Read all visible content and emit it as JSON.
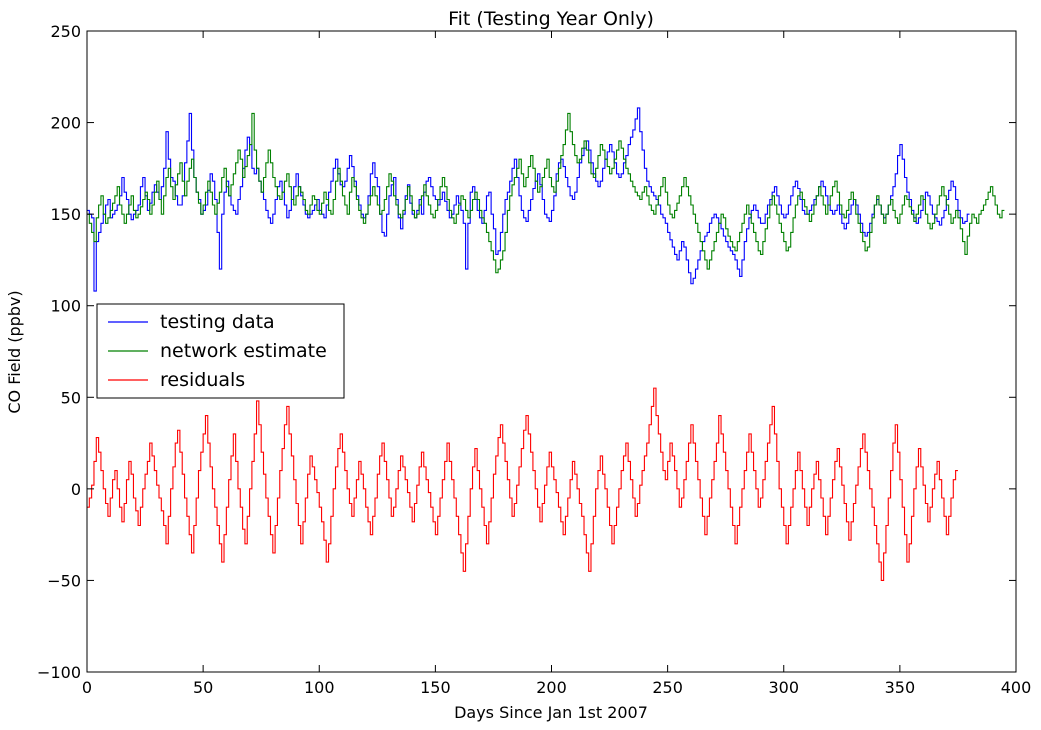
{
  "chart_data": {
    "type": "line",
    "title": "Fit (Testing Year Only)",
    "xlabel": "Days Since Jan 1st 2007",
    "ylabel": "CO Field (ppbv)",
    "xlim": [
      0,
      400
    ],
    "ylim": [
      -100,
      250
    ],
    "xticks": [
      0,
      50,
      100,
      150,
      200,
      250,
      300,
      350,
      400
    ],
    "yticks": [
      -100,
      -50,
      0,
      50,
      100,
      150,
      200,
      250
    ],
    "x_range": [
      0,
      363
    ],
    "grid": false,
    "legend_position": "center-left",
    "series": [
      {
        "name": "testing data",
        "color": "#0000ff",
        "step": 1,
        "values": [
          152,
          150,
          148,
          108,
          135,
          140,
          145,
          150,
          155,
          158,
          148,
          150,
          152,
          155,
          160,
          170,
          162,
          158,
          150,
          147,
          150,
          152,
          155,
          165,
          170,
          160,
          152,
          156,
          162,
          166,
          162,
          158,
          165,
          175,
          195,
          180,
          170,
          168,
          160,
          155,
          155,
          160,
          178,
          190,
          205,
          185,
          170,
          162,
          158,
          150,
          152,
          155,
          163,
          172,
          168,
          158,
          140,
          120,
          150,
          162,
          168,
          160,
          155,
          152,
          150,
          158,
          165,
          175,
          185,
          192,
          188,
          175,
          172,
          175,
          168,
          162,
          158,
          152,
          148,
          145,
          150,
          158,
          165,
          168,
          162,
          155,
          148,
          152,
          158,
          165,
          172,
          165,
          160,
          155,
          150,
          148,
          150,
          152,
          155,
          158,
          152,
          150,
          148,
          155,
          162,
          168,
          175,
          180,
          172,
          166,
          165,
          168,
          175,
          182,
          176,
          168,
          160,
          155,
          150,
          148,
          150,
          160,
          172,
          178,
          170,
          165,
          150,
          140,
          138,
          150,
          160,
          166,
          170,
          158,
          148,
          142,
          150,
          160,
          166,
          156,
          150,
          148,
          152,
          158,
          150,
          162,
          168,
          170,
          165,
          160,
          158,
          155,
          158,
          162,
          157,
          152,
          148,
          150,
          155,
          160,
          156,
          152,
          145,
          120,
          145,
          162,
          165,
          158,
          152,
          148,
          145,
          152,
          160,
          162,
          150,
          142,
          128,
          130,
          140,
          150,
          158,
          162,
          168,
          175,
          180,
          170,
          160,
          152,
          148,
          146,
          152,
          158,
          164,
          168,
          172,
          166,
          158,
          150,
          148,
          146,
          152,
          160,
          172,
          178,
          180,
          176,
          170,
          165,
          160,
          158,
          162,
          170,
          178,
          182,
          186,
          190,
          185,
          178,
          172,
          168,
          165,
          168,
          175,
          180,
          184,
          188,
          184,
          178,
          172,
          170,
          172,
          178,
          182,
          188,
          192,
          196,
          202,
          208,
          195,
          185,
          175,
          168,
          165,
          162,
          160,
          158,
          155,
          150,
          148,
          145,
          140,
          136,
          132,
          128,
          125,
          130,
          135,
          132,
          125,
          118,
          112,
          115,
          120,
          125,
          130,
          135,
          138,
          140,
          145,
          148,
          150,
          148,
          145,
          142,
          138,
          135,
          132,
          130,
          128,
          125,
          120,
          116,
          125,
          135,
          142,
          148,
          152,
          155,
          152,
          148,
          145,
          145,
          150,
          155,
          158,
          162,
          165,
          160,
          155,
          150,
          148,
          150,
          155,
          160,
          165,
          168,
          164,
          158,
          152,
          150,
          150,
          152,
          155,
          158,
          160,
          165,
          168,
          165,
          160,
          155,
          152,
          150,
          152,
          155,
          150,
          145,
          142,
          145,
          150,
          155,
          158,
          155,
          150,
          145,
          140,
          138,
          140,
          145,
          150,
          155,
          158,
          155,
          150,
          148,
          150,
          155,
          160,
          165,
          172,
          182,
          188,
          180,
          170,
          162,
          158,
          152,
          148,
          145,
          148,
          152,
          158,
          162,
          160,
          155,
          150,
          148,
          146,
          144,
          148,
          152,
          158,
          163,
          168,
          165,
          158,
          152,
          148,
          145,
          146,
          150
        ],
        "note": ""
      },
      {
        "name": "network estimate",
        "color": "#008000",
        "step": 1,
        "values": [
          150,
          145,
          140,
          135,
          148,
          155,
          160,
          150,
          145,
          148,
          152,
          156,
          160,
          165,
          155,
          150,
          145,
          150,
          155,
          160,
          152,
          148,
          150,
          154,
          158,
          162,
          158,
          150,
          155,
          162,
          168,
          158,
          150,
          160,
          170,
          175,
          165,
          158,
          166,
          172,
          178,
          168,
          160,
          168,
          175,
          180,
          170,
          162,
          156,
          150,
          155,
          162,
          168,
          162,
          155,
          150,
          156,
          162,
          170,
          175,
          165,
          160,
          166,
          172,
          178,
          185,
          180,
          170,
          176,
          182,
          188,
          205,
          185,
          175,
          168,
          162,
          170,
          178,
          185,
          178,
          170,
          165,
          160,
          158,
          162,
          168,
          172,
          165,
          158,
          155,
          160,
          165,
          162,
          158,
          152,
          150,
          155,
          160,
          158,
          152,
          150,
          156,
          162,
          158,
          152,
          150,
          158,
          168,
          175,
          168,
          160,
          155,
          150,
          162,
          170,
          165,
          158,
          152,
          148,
          145,
          150,
          155,
          160,
          165,
          160,
          155,
          150,
          152,
          158,
          165,
          172,
          168,
          160,
          155,
          150,
          148,
          152,
          158,
          165,
          160,
          152,
          148,
          150,
          155,
          160,
          166,
          160,
          155,
          150,
          148,
          152,
          158,
          165,
          170,
          165,
          158,
          152,
          148,
          145,
          150,
          155,
          160,
          158,
          152,
          148,
          152,
          158,
          162,
          158,
          152,
          148,
          145,
          140,
          135,
          130,
          125,
          118,
          120,
          125,
          130,
          140,
          152,
          160,
          166,
          170,
          175,
          180,
          172,
          165,
          170,
          176,
          182,
          175,
          168,
          162,
          165,
          170,
          175,
          180,
          170,
          165,
          162,
          168,
          175,
          182,
          188,
          196,
          205,
          195,
          188,
          182,
          178,
          180,
          186,
          190,
          185,
          178,
          172,
          170,
          175,
          182,
          188,
          185,
          180,
          176,
          172,
          175,
          180,
          185,
          190,
          186,
          180,
          175,
          172,
          168,
          165,
          162,
          160,
          158,
          162,
          165,
          160,
          155,
          152,
          150,
          155,
          160,
          165,
          170,
          162,
          155,
          150,
          148,
          152,
          156,
          160,
          165,
          170,
          165,
          160,
          155,
          150,
          145,
          140,
          135,
          130,
          125,
          120,
          125,
          130,
          135,
          140,
          145,
          150,
          148,
          142,
          138,
          135,
          132,
          130,
          135,
          140,
          145,
          150,
          155,
          150,
          145,
          140,
          135,
          130,
          128,
          135,
          142,
          148,
          155,
          160,
          155,
          150,
          145,
          140,
          135,
          130,
          132,
          140,
          148,
          155,
          160,
          162,
          158,
          154,
          150,
          146,
          150,
          155,
          160,
          165,
          160,
          155,
          150,
          155,
          160,
          165,
          168,
          162,
          155,
          150,
          148,
          152,
          158,
          162,
          158,
          150,
          145,
          140,
          135,
          130,
          132,
          140,
          148,
          155,
          160,
          155,
          150,
          145,
          150,
          155,
          158,
          152,
          148,
          145,
          150,
          155,
          160,
          158,
          154,
          150,
          146,
          150,
          155,
          160,
          158,
          150,
          145,
          142,
          145,
          150,
          155,
          160,
          165,
          160,
          155,
          150,
          145,
          148,
          152,
          148,
          142,
          135,
          128,
          138,
          145,
          150,
          148,
          145,
          150,
          152,
          155,
          158,
          162,
          165,
          160,
          155,
          150,
          148,
          152
        ],
        "note": ""
      },
      {
        "name": "residuals",
        "color": "#ff0000",
        "step": 1,
        "values": [
          -10,
          -5,
          2,
          15,
          28,
          20,
          10,
          0,
          -8,
          -15,
          -5,
          5,
          10,
          0,
          -10,
          -18,
          -8,
          5,
          15,
          8,
          -5,
          -12,
          -20,
          -10,
          0,
          8,
          15,
          25,
          18,
          10,
          2,
          -5,
          -12,
          -20,
          -30,
          -15,
          0,
          12,
          25,
          32,
          20,
          8,
          -5,
          -15,
          -25,
          -35,
          -20,
          -5,
          10,
          20,
          30,
          40,
          25,
          12,
          0,
          -10,
          -20,
          -30,
          -40,
          -25,
          -10,
          5,
          18,
          30,
          15,
          0,
          -10,
          -22,
          -30,
          -15,
          0,
          15,
          30,
          48,
          35,
          20,
          8,
          -5,
          -15,
          -25,
          -35,
          -20,
          -5,
          10,
          22,
          35,
          45,
          30,
          18,
          5,
          -8,
          -20,
          -30,
          -18,
          -5,
          8,
          18,
          12,
          5,
          -2,
          -10,
          -18,
          -28,
          -40,
          -30,
          -15,
          0,
          12,
          22,
          30,
          20,
          10,
          0,
          -8,
          -15,
          -5,
          5,
          15,
          8,
          0,
          -10,
          -18,
          -25,
          -15,
          -5,
          8,
          18,
          25,
          15,
          5,
          -5,
          -15,
          -10,
          0,
          10,
          18,
          12,
          5,
          -2,
          -10,
          -18,
          -8,
          2,
          12,
          20,
          12,
          5,
          -2,
          -10,
          -18,
          -25,
          -15,
          -5,
          5,
          15,
          25,
          15,
          5,
          -5,
          -15,
          -25,
          -35,
          -45,
          -30,
          -15,
          0,
          12,
          22,
          10,
          0,
          -10,
          -20,
          -30,
          -18,
          -5,
          8,
          18,
          28,
          35,
          25,
          15,
          5,
          -5,
          -15,
          -8,
          2,
          12,
          22,
          32,
          40,
          30,
          20,
          10,
          0,
          -10,
          -18,
          -8,
          2,
          12,
          20,
          12,
          5,
          -2,
          -10,
          -18,
          -25,
          -15,
          -5,
          5,
          15,
          8,
          0,
          -8,
          -15,
          -25,
          -35,
          -45,
          -30,
          -15,
          0,
          10,
          18,
          8,
          0,
          -10,
          -20,
          -30,
          -20,
          -10,
          0,
          10,
          18,
          25,
          15,
          5,
          -5,
          -15,
          -8,
          2,
          10,
          18,
          25,
          35,
          45,
          55,
          40,
          30,
          20,
          10,
          5,
          15,
          25,
          18,
          10,
          0,
          -10,
          -5,
          5,
          15,
          25,
          35,
          25,
          15,
          5,
          -5,
          -15,
          -25,
          -15,
          -5,
          5,
          15,
          25,
          40,
          30,
          20,
          10,
          0,
          -10,
          -20,
          -30,
          -20,
          -10,
          0,
          10,
          20,
          30,
          20,
          10,
          0,
          -10,
          -5,
          5,
          15,
          25,
          35,
          45,
          30,
          15,
          0,
          -10,
          -20,
          -30,
          -20,
          -10,
          0,
          10,
          20,
          10,
          0,
          -10,
          -20,
          -10,
          0,
          8,
          15,
          5,
          -5,
          -15,
          -25,
          -15,
          -5,
          5,
          15,
          22,
          12,
          2,
          -8,
          -18,
          -28,
          -18,
          -8,
          2,
          12,
          22,
          30,
          20,
          10,
          0,
          -10,
          -20,
          -30,
          -40,
          -50,
          -35,
          -20,
          -5,
          10,
          25,
          35,
          20,
          5,
          -10,
          -25,
          -40,
          -30,
          -15,
          0,
          12,
          22,
          12,
          2,
          -8,
          -18,
          -10,
          0,
          8,
          15,
          5,
          -5,
          -15,
          -25,
          -15,
          -5,
          5,
          10
        ],
        "note": ""
      }
    ]
  }
}
